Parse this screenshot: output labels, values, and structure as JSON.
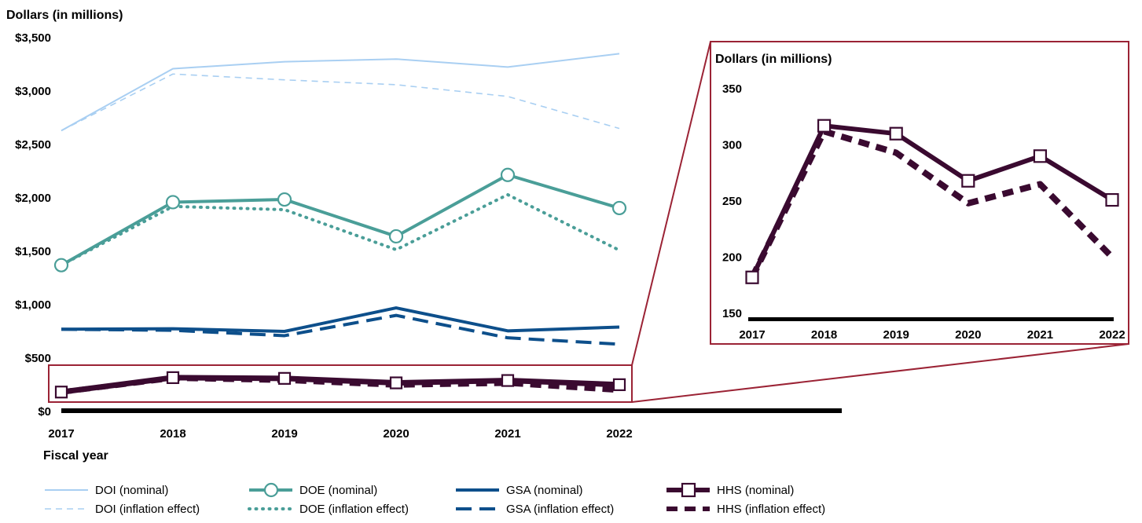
{
  "chart_data": [
    {
      "type": "line",
      "ylabel": "Dollars (in millions)",
      "xlabel": "Fiscal year",
      "ylim": [
        0,
        3500
      ],
      "x": [
        "2017",
        "2018",
        "2019",
        "2020",
        "2021",
        "2022"
      ],
      "yticks": [
        "$0",
        "$500",
        "$1,000",
        "$1,500",
        "$2,000",
        "$2,500",
        "$3,000",
        "$3,500"
      ],
      "ytick_values": [
        0,
        500,
        1000,
        1500,
        2000,
        2500,
        3000,
        3500
      ],
      "series": [
        {
          "name": "DOI (nominal)",
          "color": "#a9cff2",
          "values": [
            2630,
            3210,
            3275,
            3300,
            3225,
            3350
          ]
        },
        {
          "name": "DOI (inflation effect)",
          "color": "#a9cff2",
          "values": [
            2630,
            3160,
            3105,
            3060,
            2950,
            2650
          ]
        },
        {
          "name": "DOE (nominal)",
          "color": "#4a9e98",
          "values": [
            1370,
            1960,
            1985,
            1640,
            2215,
            1905
          ]
        },
        {
          "name": "DOE (inflation effect)",
          "color": "#4a9e98",
          "values": [
            1370,
            1920,
            1890,
            1515,
            2030,
            1510
          ]
        },
        {
          "name": "GSA (nominal)",
          "color": "#0d4f8b",
          "values": [
            770,
            775,
            750,
            970,
            755,
            790
          ]
        },
        {
          "name": "GSA (inflation effect)",
          "color": "#0d4f8b",
          "values": [
            770,
            760,
            710,
            900,
            690,
            630
          ]
        },
        {
          "name": "HHS (nominal)",
          "color": "#3a0a30",
          "values": [
            182,
            317,
            310,
            268,
            290,
            251
          ]
        },
        {
          "name": "HHS (inflation effect)",
          "color": "#3a0a30",
          "values": [
            182,
            312,
            293,
            248,
            265,
            200
          ]
        }
      ],
      "legend": "bottom",
      "grid": false
    },
    {
      "type": "line",
      "ylabel": "Dollars (in millions)",
      "ylim": [
        150,
        350
      ],
      "x": [
        "2017",
        "2018",
        "2019",
        "2020",
        "2021",
        "2022"
      ],
      "yticks": [
        "150",
        "200",
        "250",
        "300",
        "350"
      ],
      "ytick_values": [
        150,
        200,
        250,
        300,
        350
      ],
      "series": [
        {
          "name": "HHS (nominal)",
          "color": "#3a0a30",
          "values": [
            182,
            317,
            310,
            268,
            290,
            251
          ]
        },
        {
          "name": "HHS (inflation effect)",
          "color": "#3a0a30",
          "values": [
            182,
            312,
            293,
            248,
            265,
            200
          ]
        }
      ],
      "grid": false
    }
  ]
}
